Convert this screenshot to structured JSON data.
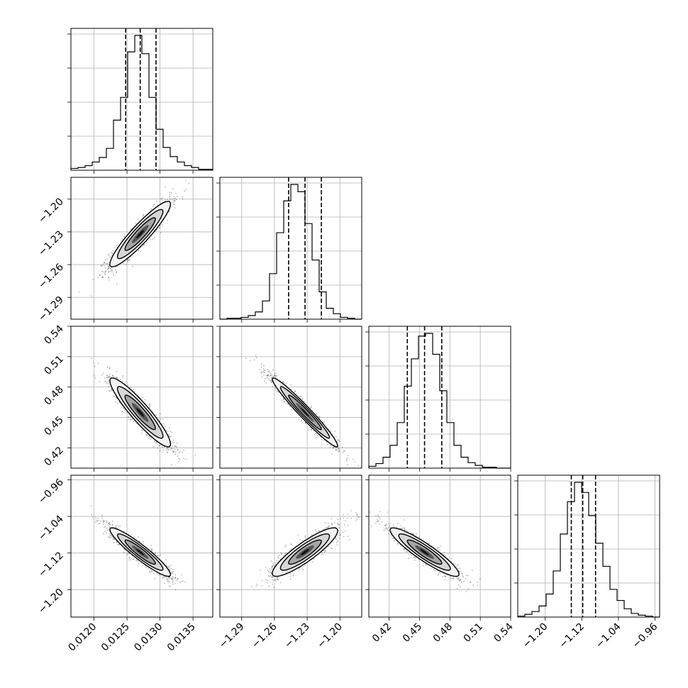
{
  "chart_data": {
    "type": "corner",
    "grid": true,
    "params": [
      {
        "index": 0,
        "lim": [
          0.01165,
          0.0138
        ],
        "ticks": [
          0.012,
          0.0125,
          0.013,
          0.0135
        ],
        "tick_labels": [
          "0.0120",
          "0.0125",
          "0.0130",
          "0.0135"
        ],
        "median": 0.0127,
        "q16": 0.01248,
        "q84": 0.01294
      },
      {
        "index": 1,
        "lim": [
          -1.31,
          -1.18
        ],
        "ticks": [
          -1.29,
          -1.26,
          -1.23,
          -1.2
        ],
        "tick_labels": [
          "−1.29",
          "−1.26",
          "−1.23",
          "−1.20"
        ],
        "median": -1.232,
        "q16": -1.247,
        "q84": -1.217
      },
      {
        "index": 2,
        "lim": [
          0.4,
          0.54
        ],
        "ticks": [
          0.42,
          0.45,
          0.48,
          0.51,
          0.54
        ],
        "tick_labels": [
          "0.42",
          "0.45",
          "0.48",
          "0.51",
          "0.54"
        ],
        "median": 0.455,
        "q16": 0.438,
        "q84": 0.472
      },
      {
        "index": 3,
        "lim": [
          -1.26,
          -0.95
        ],
        "ticks": [
          -1.2,
          -1.12,
          -1.04,
          -0.96
        ],
        "tick_labels": [
          "−1.20",
          "−1.12",
          "−1.04",
          "−0.96"
        ],
        "median": -1.118,
        "q16": -1.143,
        "q84": -1.09
      }
    ],
    "pair_correlations": [
      {
        "row": 1,
        "col": 0,
        "rho": 0.92
      },
      {
        "row": 2,
        "col": 0,
        "rho": -0.92
      },
      {
        "row": 2,
        "col": 1,
        "rho": -0.97
      },
      {
        "row": 3,
        "col": 0,
        "rho": -0.93
      },
      {
        "row": 3,
        "col": 1,
        "rho": 0.88
      },
      {
        "row": 3,
        "col": 2,
        "rho": -0.91
      }
    ],
    "histograms": [
      {
        "param": 0,
        "values": [
          2,
          3,
          5,
          9,
          14,
          24,
          55,
          80,
          130,
          148,
          128,
          80,
          45,
          25,
          15,
          9,
          5,
          3,
          1,
          1
        ]
      },
      {
        "param": 1,
        "values": [
          0,
          1,
          1,
          2,
          4,
          8,
          20,
          50,
          95,
          130,
          148,
          140,
          105,
          65,
          30,
          12,
          6,
          2,
          1,
          0
        ]
      },
      {
        "param": 2,
        "values": [
          2,
          5,
          12,
          25,
          50,
          90,
          120,
          145,
          148,
          125,
          85,
          50,
          25,
          12,
          6,
          3,
          1,
          1,
          0,
          0
        ]
      },
      {
        "param": 3,
        "values": [
          1,
          3,
          6,
          12,
          25,
          50,
          90,
          125,
          146,
          135,
          110,
          80,
          55,
          30,
          18,
          9,
          4,
          2,
          1,
          0
        ]
      }
    ]
  }
}
